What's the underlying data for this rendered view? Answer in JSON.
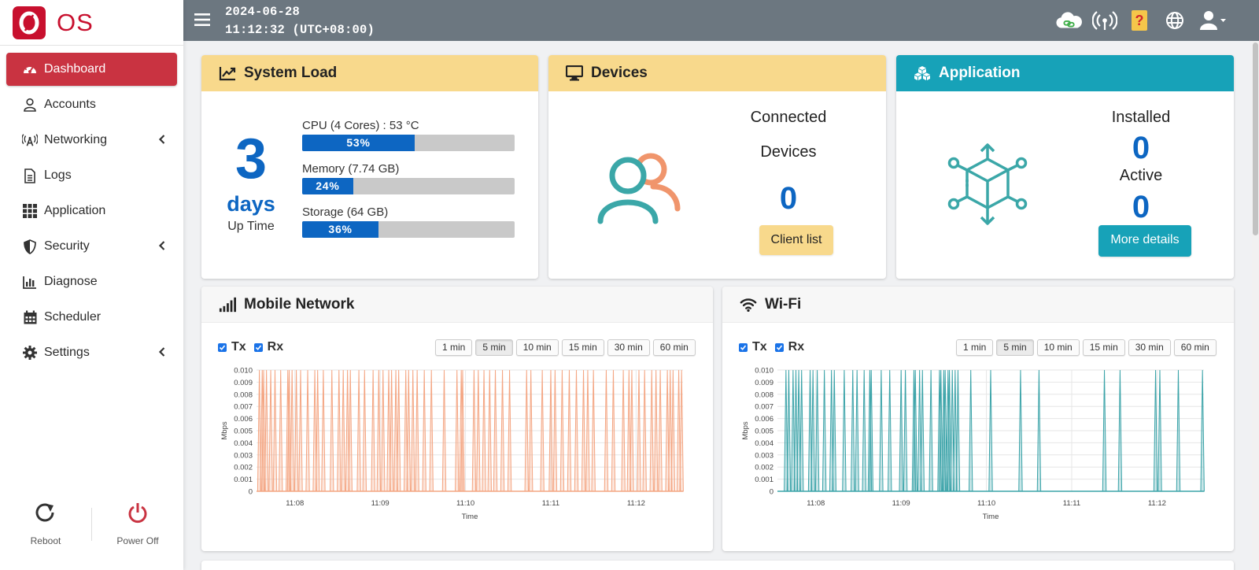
{
  "brand": {
    "logo_letter": "O",
    "name": "OS"
  },
  "nav": {
    "items": [
      {
        "label": "Dashboard",
        "icon": "gauge-icon",
        "active": true
      },
      {
        "label": "Accounts",
        "icon": "user-icon"
      },
      {
        "label": "Networking",
        "icon": "antenna-icon",
        "has_submenu": true
      },
      {
        "label": "Logs",
        "icon": "document-icon"
      },
      {
        "label": "Application",
        "icon": "grid-icon"
      },
      {
        "label": "Security",
        "icon": "shield-icon",
        "has_submenu": true
      },
      {
        "label": "Diagnose",
        "icon": "bar-chart-icon"
      },
      {
        "label": "Scheduler",
        "icon": "calendar-icon"
      },
      {
        "label": "Settings",
        "icon": "gear-icon",
        "has_submenu": true
      }
    ]
  },
  "power": {
    "reboot_label": "Reboot",
    "poweroff_label": "Power Off"
  },
  "header": {
    "date": "2024-06-28",
    "time": "11:12:32 (UTC+08:00)",
    "icons": [
      "cloud-link-icon",
      "wireless-icon",
      "help-icon",
      "globe-icon",
      "user-menu-icon"
    ]
  },
  "system_load": {
    "title": "System Load",
    "uptime_value": "3",
    "uptime_unit": "days",
    "uptime_label": "Up Time",
    "resources": [
      {
        "label": "CPU (4 Cores) : 53 °C",
        "percent": 53,
        "percent_label": "53%"
      },
      {
        "label": "Memory (7.74 GB)",
        "percent": 24,
        "percent_label": "24%"
      },
      {
        "label": "Storage (64 GB)",
        "percent": 36,
        "percent_label": "36%"
      }
    ]
  },
  "devices": {
    "title": "Devices",
    "label_line1": "Connected",
    "label_line2": "Devices",
    "count": "0",
    "button": "Client list"
  },
  "application": {
    "title": "Application",
    "installed_label": "Installed",
    "installed_count": "0",
    "active_label": "Active",
    "active_count": "0",
    "button": "More details"
  },
  "ranges": [
    "1 min",
    "5 min",
    "10 min",
    "15 min",
    "30 min",
    "60 min"
  ],
  "mobile_network": {
    "title": "Mobile Network",
    "tx_label": "Tx",
    "rx_label": "Rx",
    "selected_range": "5 min"
  },
  "wifi": {
    "title": "Wi-Fi",
    "tx_label": "Tx",
    "rx_label": "Rx",
    "selected_range": "5 min"
  },
  "chart_data": [
    {
      "id": "mobile",
      "type": "area",
      "title": "",
      "xlabel": "Time",
      "ylabel": "Mbps",
      "ylim": [
        0,
        0.01
      ],
      "yticks": [
        "0",
        "0.001",
        "0.002",
        "0.003",
        "0.004",
        "0.005",
        "0.006",
        "0.007",
        "0.008",
        "0.009",
        "0.010"
      ],
      "xlim": [
        "11:07:33",
        "11:12:33"
      ],
      "xticks": [
        "11:08",
        "11:09",
        "11:10",
        "11:11",
        "11:12"
      ],
      "color": "#f4a582",
      "grid": true,
      "spikes": [
        "11:07:35",
        "11:07:37",
        "11:07:38",
        "11:07:40",
        "11:07:43",
        "11:07:46",
        "11:07:50",
        "11:07:55",
        "11:07:56",
        "11:07:58",
        "11:08:01",
        "11:08:04",
        "11:08:09",
        "11:08:14",
        "11:08:16",
        "11:08:20",
        "11:08:26",
        "11:08:31",
        "11:08:34",
        "11:08:37",
        "11:08:39",
        "11:08:45",
        "11:08:49",
        "11:08:55",
        "11:08:59",
        "11:09:02",
        "11:09:06",
        "11:09:08",
        "11:09:11",
        "11:09:13",
        "11:09:18",
        "11:09:20",
        "11:09:23",
        "11:09:26",
        "11:09:31",
        "11:09:36",
        "11:09:45",
        "11:09:54",
        "11:09:57",
        "11:09:58",
        "11:10:06",
        "11:10:09",
        "11:10:13",
        "11:10:17",
        "11:10:21",
        "11:10:26",
        "11:10:31",
        "11:10:43",
        "11:10:46",
        "11:10:54",
        "11:11:00",
        "11:11:03",
        "11:11:08",
        "11:11:13",
        "11:11:18",
        "11:11:23",
        "11:11:26",
        "11:11:30",
        "11:11:39",
        "11:11:44",
        "11:11:51",
        "11:11:55",
        "11:11:57",
        "11:12:02",
        "11:12:06",
        "11:12:11",
        "11:12:14",
        "11:12:17",
        "11:12:22",
        "11:12:24",
        "11:12:26",
        "11:12:30",
        "11:12:32"
      ]
    },
    {
      "id": "wifi",
      "type": "area",
      "title": "",
      "xlabel": "Time",
      "ylabel": "Mbps",
      "ylim": [
        0,
        0.01
      ],
      "yticks": [
        "0",
        "0.001",
        "0.002",
        "0.003",
        "0.004",
        "0.005",
        "0.006",
        "0.007",
        "0.008",
        "0.009",
        "0.010"
      ],
      "xlim": [
        "11:07:33",
        "11:12:33"
      ],
      "xticks": [
        "11:08",
        "11:09",
        "11:10",
        "11:11",
        "11:12"
      ],
      "color": "#3aa3a8",
      "grid": true,
      "spikes": [
        "11:07:39",
        "11:07:41",
        "11:07:44",
        "11:07:46",
        "11:07:48",
        "11:07:50",
        "11:07:56",
        "11:07:58",
        "11:08:01",
        "11:08:06",
        "11:08:11",
        "11:08:13",
        "11:08:20",
        "11:08:26",
        "11:08:29",
        "11:08:34",
        "11:08:38",
        "11:08:39",
        "11:08:46",
        "11:08:52",
        "11:09:00",
        "11:09:03",
        "11:09:09",
        "11:09:10",
        "11:09:13",
        "11:09:15",
        "11:09:21",
        "11:09:27",
        "11:09:28",
        "11:09:30",
        "11:09:31",
        "11:09:33",
        "11:09:34",
        "11:09:36",
        "11:09:38",
        "11:09:40",
        "11:09:49",
        "11:10:03",
        "11:10:24",
        "11:10:37",
        "11:11:23",
        "11:11:34",
        "11:11:59",
        "11:12:02",
        "11:12:15",
        "11:12:32"
      ]
    }
  ]
}
